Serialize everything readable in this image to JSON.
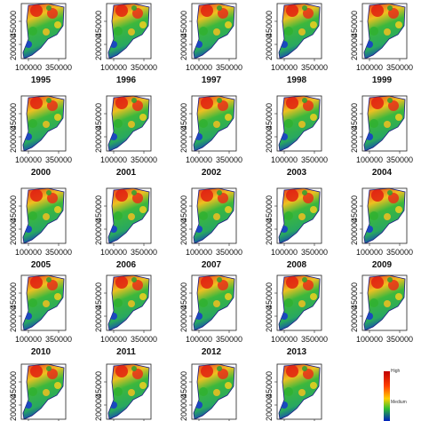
{
  "panels": [
    "1995",
    "1996",
    "1997",
    "1998",
    "1999",
    "2000",
    "2001",
    "2002",
    "2003",
    "2004",
    "2005",
    "2006",
    "2007",
    "2008",
    "2009",
    "2010",
    "2011",
    "2012",
    "2013",
    null,
    null,
    null,
    null,
    null
  ],
  "axis": {
    "yticks": [
      "450000",
      "200000"
    ],
    "xticks": [
      "100000",
      "350000"
    ]
  },
  "legend": {
    "labels": [
      "High",
      "Medium"
    ]
  }
}
